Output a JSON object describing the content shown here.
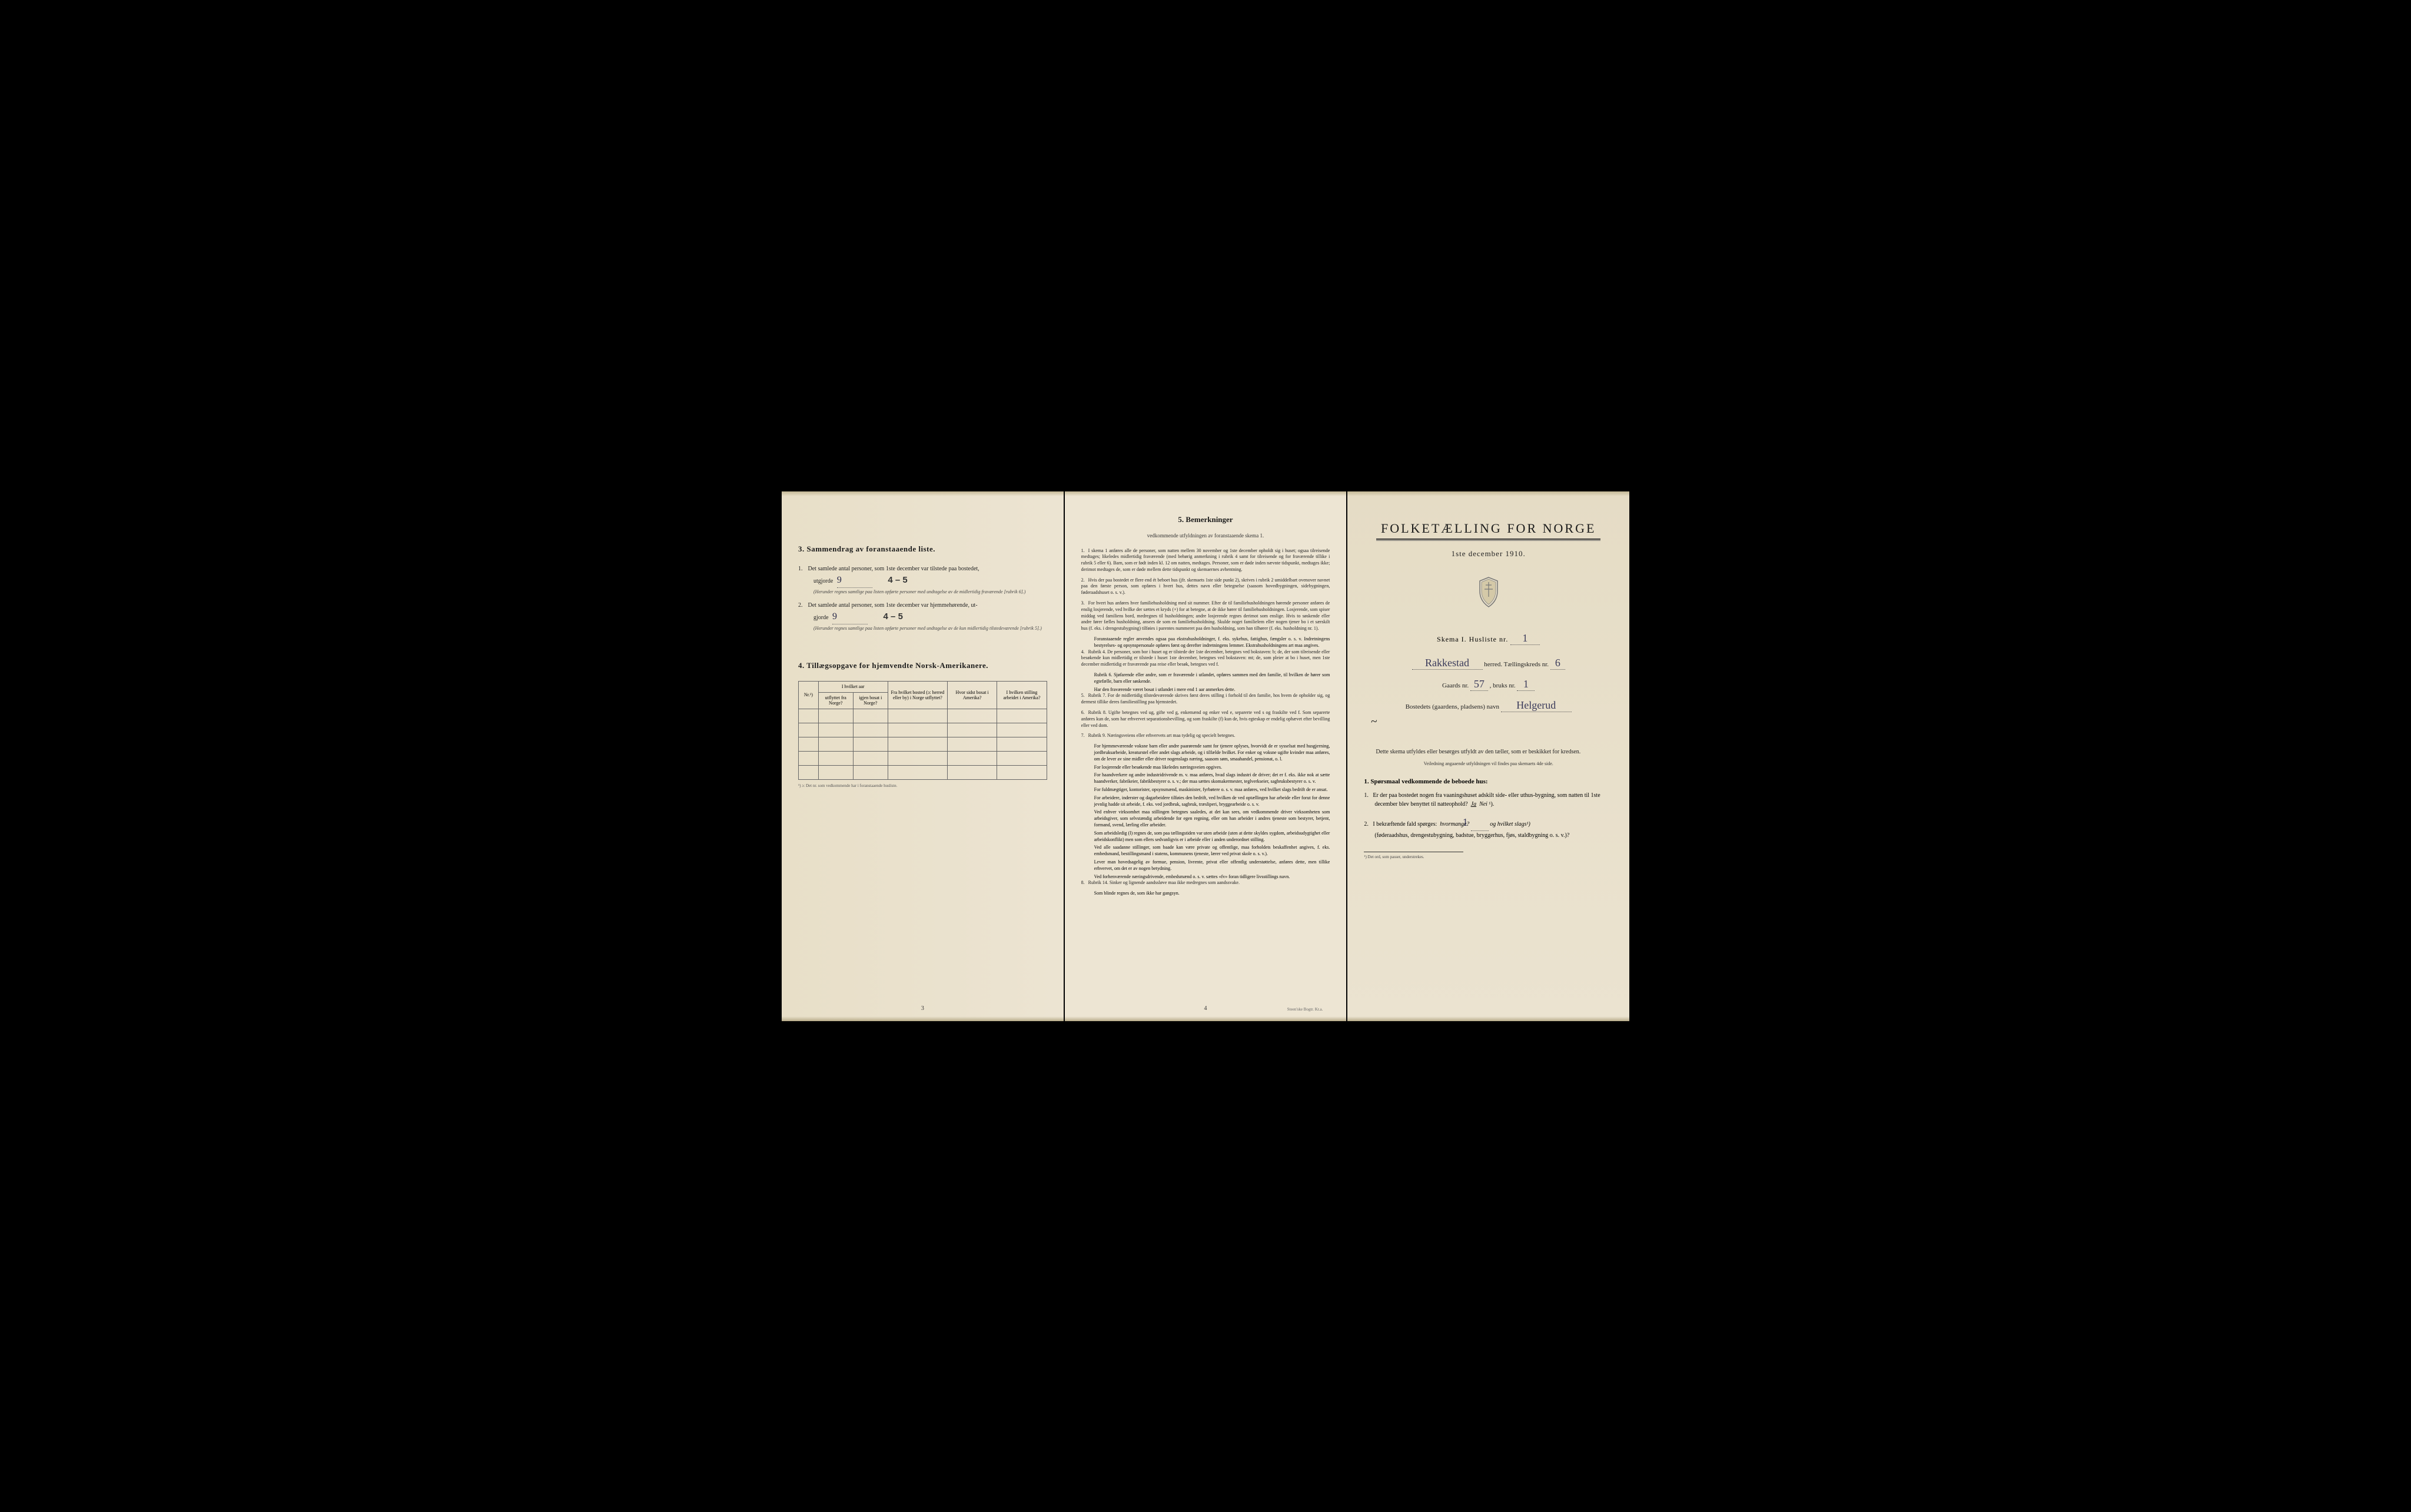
{
  "leftPage": {
    "section3": {
      "heading": "3.   Sammendrag av foranstaaende liste.",
      "item1": {
        "num": "1.",
        "text": "Det samlede antal personer, som 1ste december var tilstede paa bostedet,",
        "prefix": "utgjorde",
        "value": "9",
        "correction": "4 – 5",
        "note": "(Herunder regnes samtlige paa listen opførte personer med undtagelse av de midlertidig fraværende [rubrik 6].)"
      },
      "item2": {
        "num": "2.",
        "text": "Det samlede antal personer, som 1ste december var hjemmehørende, ut-",
        "prefix": "gjorde",
        "value": "9",
        "correction": "4 – 5",
        "note": "(Herunder regnes samtlige paa listen opførte personer med undtagelse av de kun midlertidig tilstedeværende [rubrik 5].)"
      }
    },
    "section4": {
      "heading": "4.   Tillægsopgave for hjemvendte Norsk-Amerikanere.",
      "table": {
        "headers": {
          "col1": "Nr.¹)",
          "col2a": "I hvilket aar",
          "col2b": "utflyttet fra Norge?",
          "col2c": "igjen bosat i Norge?",
          "col3": "Fra hvilket bosted (ɔ: herred eller by) i Norge utflyttet?",
          "col4": "Hvor sidst bosat i Amerika?",
          "col5": "I hvilken stilling arbeidet i Amerika?"
        },
        "footnote": "¹) ɔ: Det nr. som vedkommende har i foranstaaende husliste."
      }
    },
    "pageNum": "3"
  },
  "middlePage": {
    "heading": "5.   Bemerkninger",
    "subheading": "vedkommende utfyldningen av foranstaaende skema 1.",
    "remarks": [
      {
        "num": "1.",
        "text": "I skema 1 anføres alle de personer, som natten mellem 30 november og 1ste december opholdt sig i huset; ogsaa tilreisende medtages; likeledes midlertidig fraværende (med behørig anmerkning i rubrik 4 samt for tilreisende og for fraværende tillike i rubrik 5 eller 6). Barn, som er født inden kl. 12 om natten, medtages. Personer, som er døde inden nævnte tidspunkt, medtages ikke; derimot medtages de, som er døde mellem dette tidspunkt og skemaernes avhentning."
      },
      {
        "num": "2.",
        "text": "Hvis der paa bostedet er flere end ét beboet hus (jfr. skemaets 1ste side punkt 2), skrives i rubrik 2 umiddelbart ovenover navnet paa den første person, som opføres i hvert hus, dettes navn eller betegnelse (saasom hovedbygningen, sidebygningen, føderaadshuset o. s. v.)."
      },
      {
        "num": "3.",
        "text": "For hvert hus anføres hver familiehusholdning med sit nummer. Efter de til familiehusholdningen hørende personer anføres de enslig losjerende, ved hvilke der sættes et kryds (×) for at betegne, at de ikke hører til familiehusholdningen. Losjerende, som spiser middag ved familiens bord, medregnes til husholdningen; andre losjerende regnes derimot som enslige. Hvis to søskende eller andre fører fælles husholdning, ansees de som en familiehusholdning. Skulde noget familielem eller nogen tjener bo i et særskilt hus (f. eks. i drengestubygning) tilføies i parentes nummeret paa den husholdning, som han tilhører (f. eks. husholdning nr. 1).",
        "extras": [
          "Foranstaaende regler anvendes ogsaa paa ekstrahusholdninger, f. eks. sykehus, fattighus, fængsler o. s. v. Indretningens bestyrelses- og opsynspersonale opføres først og derefter indretningens lemmer. Ekstrahusholdningens art maa angives."
        ]
      },
      {
        "num": "4.",
        "text": "Rubrik 4. De personer, som bor i huset og er tilstede der 1ste december, betegnes ved bokstaven: b; de, der som tilreisende eller besøkende kun midlertidig er tilstede i huset 1ste december, betegnes ved bokstaven: mt; de, som pleier at bo i huset, men 1ste december midlertidig er fraværende paa reise eller besøk, betegnes ved f.",
        "extras": [
          "Rubrik 6. Sjøfarende eller andre, som er fraværende i utlandet, opføres sammen med den familie, til hvilken de hører som egtefælle, barn eller søskende.",
          "Har den fraværende været bosat i utlandet i mere end 1 aar anmerkes dette."
        ]
      },
      {
        "num": "5.",
        "text": "Rubrik 7. For de midlertidig tilstedeværende skrives først deres stilling i forhold til den familie, hos hvem de opholder sig, og dermest tillike deres familiestilling paa hjemstedet."
      },
      {
        "num": "6.",
        "text": "Rubrik 8. Ugifte betegnes ved ug, gifte ved g, enkemænd og enker ved e, separerte ved s og fraskilte ved f. Som separerte anføres kun de, som har erhvervet separationsbevilling, og som fraskilte (f) kun de, hvis egteskap er endelig ophævet efter bevilling eller ved dom."
      },
      {
        "num": "7.",
        "text": "Rubrik 9. Næringsveiens eller erhvervets art maa tydelig og specielt betegnes.",
        "extras": [
          "For hjemmeværende voksne barn eller andre paarørende samt for tjenere oplyses, hvorvidt de er sysselsat med husgjerning, jordbruksarbeide, kreaturstel eller andet slags arbeide, og i tilfælde hvilket. For enker og voksne ugifte kvinder maa anføres, om de lever av sine midler eller driver nogenslags næring, saasom søm, smaahandel, pensionat, o. l.",
          "For losjerende eller besøkende maa likeledes næringsveien opgives.",
          "For haandverkere og andre industridrivende m. v. maa anføres, hvad slags industri de driver; det er f. eks. ikke nok at sætte haandverker, fabrikeier, fabrikbestyrer o. s. v.; der maa sættes skomakermester, teglverkseier, sagbruksbestyrer o. s. v.",
          "For fuldmægtiger, kontorister, opsynsmænd, maskinister, fyrbøtere o. s. v. maa anføres, ved hvilket slags bedrift de er ansat.",
          "For arbeidere, inderster og dagarbeidere tilføies den bedrift, ved hvilken de ved optællingen har arbeide eller forut for denne jevnlig hadde sit arbeide, f. eks. ved jordbruk, sagbruk, træsliperi, bryggearbeide o. s. v.",
          "Ved enhver virksomhet maa stillingen betegnes saaledes, at det kan sees, om vedkommende driver virksomheten som arbeidsgiver, som selvstændig arbeidende for egen regning, eller om han arbeider i andres tjeneste som bestyrer, betjent, formand, svend, lærling eller arbeider.",
          "Som arbeidsledig (l) regnes de, som paa tællingstiden var uten arbeide (uten at dette skyldes sygdom, arbeidsudygtighet eller arbeidskonflikt) men som ellers sedvanligvis er i arbeide eller i anden underordnet stilling.",
          "Ved alle saadanne stillinger, som baade kan være private og offentlige, maa forholdets beskaffenhet angives, f. eks. embedsmand, bestillingsmand i statens, kommunens tjeneste, lærer ved privat skole o. s. v.).",
          "Lever man hovedsagelig av formue, pension, livrente, privat eller offentlig understøttelse, anføres dette, men tillike erhvervet, om det er av nogen betydning.",
          "Ved forhenværende næringsdrivende, embedsmænd o. s. v. sættes «fv» foran tidligere livsstillings navn."
        ]
      },
      {
        "num": "8.",
        "text": "Rubrik 14. Sinker og lignende aandssløve maa ikke medregnes som aandssvake.",
        "extras": [
          "Som blinde regnes de, som ikke har gangsyn."
        ]
      }
    ],
    "pageNum": "4",
    "printer": "Steen'ske Bogtr. Kr.a."
  },
  "rightPage": {
    "title": "FOLKETÆLLING FOR NORGE",
    "subtitle": "1ste december 1910.",
    "skemaLabel": "Skema I.   Husliste nr.",
    "skemaValue": "1",
    "herredValue": "Rakkestad",
    "herredLabel": "herred.   Tællingskreds nr.",
    "kredsValue": "6",
    "gaardsLabel": "Gaards nr.",
    "gaardsValue": "57",
    "bruksLabel": ", bruks nr.",
    "bruksValue": "1",
    "bostedLabel": "Bostedets (gaardens, pladsens) navn",
    "bostedValue": "Helgerud",
    "bodyText": "Dette skema utfyldes eller besørges utfyldt av den tæller, som er beskikket for kredsen.",
    "bodySmall": "Veiledning angaaende utfyldningen vil findes paa skemaets 4de side.",
    "q1heading": "1.  Spørsmaal vedkommende de beboede hus:",
    "q1": {
      "num": "1.",
      "text": "Er der paa bostedet nogen fra vaaningshuset adskilt side- eller uthus-bygning, som natten til 1ste december blev benyttet til natteophold?",
      "jaLabel": "Ja",
      "neiLabel": "Nei",
      "sup": "¹)."
    },
    "q2": {
      "num": "2.",
      "text1": "I bekræftende fald spørges:",
      "hvormange": "hvormange?",
      "hvormangeValue": "1",
      "text2": "og hvilket slags¹)",
      "text3": "(føderaadshus, drengestubygning, badstue, bryggerhus, fjøs, staldbygning o. s. v.)?"
    },
    "footnote": "¹) Det ord, som passer, understrekes."
  }
}
